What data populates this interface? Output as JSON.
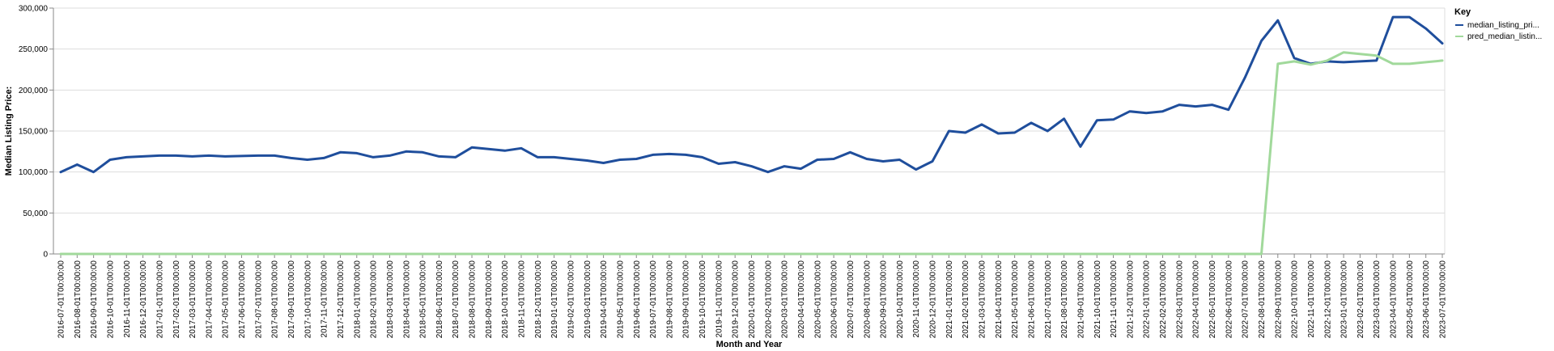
{
  "chart_data": {
    "type": "line",
    "title": "",
    "xlabel": "Month and Year",
    "ylabel": "Median Listing Price:",
    "ylim": [
      0,
      300000
    ],
    "y_ticks": [
      "0",
      "50,000",
      "100,000",
      "150,000",
      "200,000",
      "250,000",
      "300,000"
    ],
    "y_tick_values": [
      0,
      50000,
      100000,
      150000,
      200000,
      250000,
      300000
    ],
    "grid": true,
    "legend": {
      "title": "Key",
      "placement": "top-right"
    },
    "x": [
      "2016-07-01T00:00:00",
      "2016-08-01T00:00:00",
      "2016-09-01T00:00:00",
      "2016-10-01T00:00:00",
      "2016-11-01T00:00:00",
      "2016-12-01T00:00:00",
      "2017-01-01T00:00:00",
      "2017-02-01T00:00:00",
      "2017-03-01T00:00:00",
      "2017-04-01T00:00:00",
      "2017-05-01T00:00:00",
      "2017-06-01T00:00:00",
      "2017-07-01T00:00:00",
      "2017-08-01T00:00:00",
      "2017-09-01T00:00:00",
      "2017-10-01T00:00:00",
      "2017-11-01T00:00:00",
      "2017-12-01T00:00:00",
      "2018-01-01T00:00:00",
      "2018-02-01T00:00:00",
      "2018-03-01T00:00:00",
      "2018-04-01T00:00:00",
      "2018-05-01T00:00:00",
      "2018-06-01T00:00:00",
      "2018-07-01T00:00:00",
      "2018-08-01T00:00:00",
      "2018-09-01T00:00:00",
      "2018-10-01T00:00:00",
      "2018-11-01T00:00:00",
      "2018-12-01T00:00:00",
      "2019-01-01T00:00:00",
      "2019-02-01T00:00:00",
      "2019-03-01T00:00:00",
      "2019-04-01T00:00:00",
      "2019-05-01T00:00:00",
      "2019-06-01T00:00:00",
      "2019-07-01T00:00:00",
      "2019-08-01T00:00:00",
      "2019-09-01T00:00:00",
      "2019-10-01T00:00:00",
      "2019-11-01T00:00:00",
      "2019-12-01T00:00:00",
      "2020-01-01T00:00:00",
      "2020-02-01T00:00:00",
      "2020-03-01T00:00:00",
      "2020-04-01T00:00:00",
      "2020-05-01T00:00:00",
      "2020-06-01T00:00:00",
      "2020-07-01T00:00:00",
      "2020-08-01T00:00:00",
      "2020-09-01T00:00:00",
      "2020-10-01T00:00:00",
      "2020-11-01T00:00:00",
      "2020-12-01T00:00:00",
      "2021-01-01T00:00:00",
      "2021-02-01T00:00:00",
      "2021-03-01T00:00:00",
      "2021-04-01T00:00:00",
      "2021-05-01T00:00:00",
      "2021-06-01T00:00:00",
      "2021-07-01T00:00:00",
      "2021-08-01T00:00:00",
      "2021-09-01T00:00:00",
      "2021-10-01T00:00:00",
      "2021-11-01T00:00:00",
      "2021-12-01T00:00:00",
      "2022-01-01T00:00:00",
      "2022-02-01T00:00:00",
      "2022-03-01T00:00:00",
      "2022-04-01T00:00:00",
      "2022-05-01T00:00:00",
      "2022-06-01T00:00:00",
      "2022-07-01T00:00:00",
      "2022-08-01T00:00:00",
      "2022-09-01T00:00:00",
      "2022-10-01T00:00:00",
      "2022-11-01T00:00:00",
      "2022-12-01T00:00:00",
      "2023-01-01T00:00:00",
      "2023-02-01T00:00:00",
      "2023-03-01T00:00:00",
      "2023-04-01T00:00:00",
      "2023-05-01T00:00:00",
      "2023-06-01T00:00:00",
      "2023-07-01T00:00:00"
    ],
    "series": [
      {
        "name": "median_listing_pri...",
        "color": "#1f4e9c",
        "values": [
          100000,
          109000,
          100000,
          115000,
          118000,
          119000,
          120000,
          120000,
          119000,
          120000,
          119000,
          119500,
          120000,
          120000,
          117000,
          115000,
          117000,
          124000,
          123000,
          118000,
          120000,
          125000,
          124000,
          119000,
          118000,
          130000,
          128000,
          126000,
          129000,
          118000,
          118000,
          116000,
          114000,
          111000,
          115000,
          116000,
          121000,
          122000,
          121000,
          118000,
          110000,
          112000,
          107000,
          100000,
          107000,
          104000,
          115000,
          116000,
          124000,
          116000,
          113000,
          115000,
          103000,
          113000,
          150000,
          148000,
          158000,
          147000,
          148000,
          160000,
          150000,
          165000,
          131000,
          163000,
          164000,
          174000,
          172000,
          174000,
          182000,
          180000,
          182000,
          176000,
          215000,
          260000,
          285000,
          239000,
          232000,
          235000,
          234000,
          235000,
          236000,
          289000,
          289000,
          275000,
          257000
        ]
      },
      {
        "name": "pred_median_listin...",
        "color": "#a1d99b",
        "values": [
          0,
          0,
          0,
          0,
          0,
          0,
          0,
          0,
          0,
          0,
          0,
          0,
          0,
          0,
          0,
          0,
          0,
          0,
          0,
          0,
          0,
          0,
          0,
          0,
          0,
          0,
          0,
          0,
          0,
          0,
          0,
          0,
          0,
          0,
          0,
          0,
          0,
          0,
          0,
          0,
          0,
          0,
          0,
          0,
          0,
          0,
          0,
          0,
          0,
          0,
          0,
          0,
          0,
          0,
          0,
          0,
          0,
          0,
          0,
          0,
          0,
          0,
          0,
          0,
          0,
          0,
          0,
          0,
          0,
          0,
          0,
          0,
          0,
          0,
          232000,
          235000,
          231000,
          236000,
          246000,
          244000,
          242000,
          232000,
          232000,
          234000,
          236000
        ]
      }
    ]
  }
}
